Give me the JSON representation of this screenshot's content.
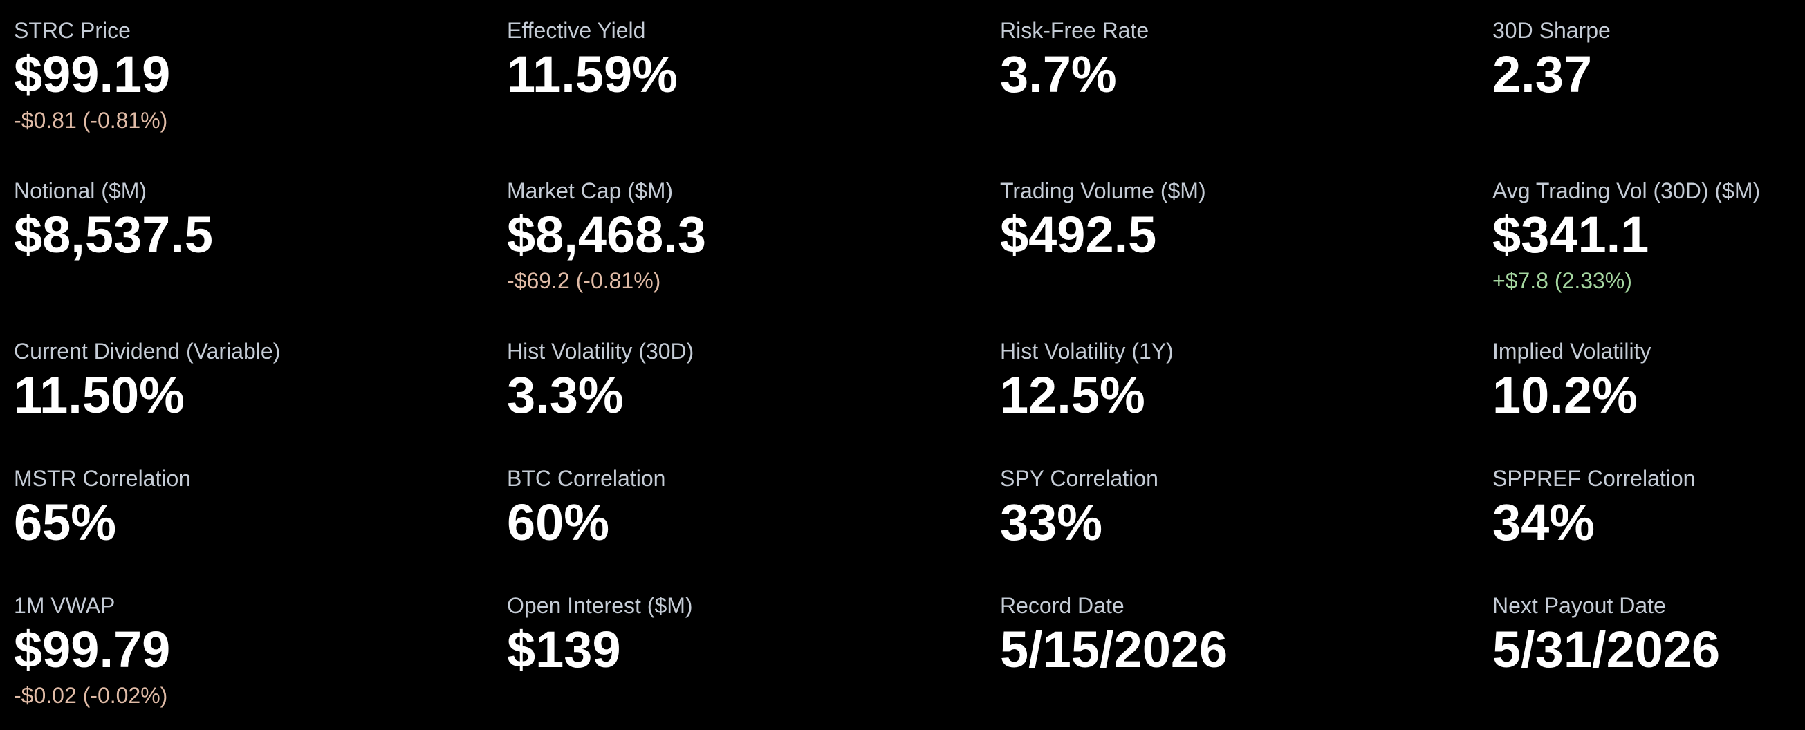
{
  "metrics": {
    "strc_price": {
      "label": "STRC Price",
      "value": "$99.19",
      "change": "-$0.81 (-0.81%)"
    },
    "effective_yield": {
      "label": "Effective Yield",
      "value": "11.59%"
    },
    "risk_free_rate": {
      "label": "Risk-Free Rate",
      "value": "3.7%"
    },
    "sharpe_30d": {
      "label": "30D Sharpe",
      "value": "2.37"
    },
    "notional": {
      "label": "Notional ($M)",
      "value": "$8,537.5"
    },
    "market_cap": {
      "label": "Market Cap ($M)",
      "value": "$8,468.3",
      "change": "-$69.2 (-0.81%)"
    },
    "trading_volume": {
      "label": "Trading Volume ($M)",
      "value": "$492.5"
    },
    "avg_trading_vol": {
      "label": "Avg Trading Vol (30D) ($M)",
      "value": "$341.1",
      "change": "+$7.8 (2.33%)"
    },
    "current_dividend": {
      "label": "Current Dividend (Variable)",
      "value": "11.50%"
    },
    "hist_vol_30d": {
      "label": "Hist Volatility (30D)",
      "value": "3.3%"
    },
    "hist_vol_1y": {
      "label": "Hist Volatility (1Y)",
      "value": "12.5%"
    },
    "implied_vol": {
      "label": "Implied Volatility",
      "value": "10.2%"
    },
    "mstr_corr": {
      "label": "MSTR Correlation",
      "value": "65%"
    },
    "btc_corr": {
      "label": "BTC Correlation",
      "value": "60%"
    },
    "spy_corr": {
      "label": "SPY Correlation",
      "value": "33%"
    },
    "sppref_corr": {
      "label": "SPPREF Correlation",
      "value": "34%"
    },
    "vwap_1m": {
      "label": "1M VWAP",
      "value": "$99.79",
      "change": "-$0.02 (-0.02%)"
    },
    "open_interest": {
      "label": "Open Interest ($M)",
      "value": "$139"
    },
    "record_date": {
      "label": "Record Date",
      "value": "5/15/2026"
    },
    "next_payout_date": {
      "label": "Next Payout Date",
      "value": "5/31/2026"
    }
  },
  "colors": {
    "background": "#000000",
    "label": "#c5ccd6",
    "value": "#ffffff",
    "negative_change": "#e0bba6",
    "positive_change": "#a6d8a1"
  }
}
